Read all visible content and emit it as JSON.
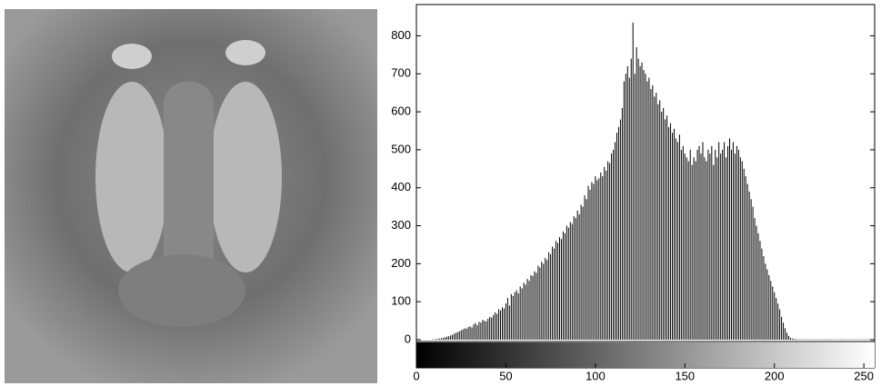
{
  "chart_data": {
    "type": "histogram",
    "color": "#000000",
    "xlim": [
      0,
      255
    ],
    "ylim": [
      0,
      880
    ],
    "xticks": [
      0,
      50,
      100,
      150,
      200,
      250
    ],
    "yticks": [
      0,
      100,
      200,
      300,
      400,
      500,
      600,
      700,
      800
    ],
    "values": [
      0,
      0,
      0,
      0,
      0,
      0,
      0,
      0,
      0,
      1,
      1,
      2,
      2,
      3,
      4,
      5,
      6,
      8,
      9,
      11,
      13,
      15,
      18,
      20,
      22,
      25,
      27,
      30,
      29,
      33,
      35,
      32,
      40,
      44,
      38,
      47,
      45,
      52,
      50,
      48,
      55,
      60,
      58,
      65,
      72,
      68,
      80,
      77,
      85,
      82,
      95,
      110,
      90,
      120,
      115,
      125,
      130,
      122,
      140,
      135,
      150,
      145,
      160,
      155,
      170,
      168,
      180,
      176,
      195,
      190,
      205,
      200,
      215,
      210,
      230,
      225,
      245,
      240,
      260,
      255,
      270,
      265,
      285,
      280,
      300,
      295,
      310,
      305,
      325,
      320,
      340,
      330,
      355,
      350,
      380,
      370,
      405,
      395,
      415,
      410,
      430,
      420,
      425,
      440,
      430,
      455,
      445,
      470,
      465,
      490,
      500,
      520,
      545,
      560,
      580,
      610,
      680,
      700,
      720,
      690,
      740,
      835,
      700,
      770,
      740,
      720,
      730,
      710,
      700,
      680,
      690,
      660,
      670,
      640,
      650,
      620,
      630,
      600,
      610,
      580,
      590,
      560,
      570,
      545,
      555,
      530,
      520,
      540,
      500,
      510,
      490,
      480,
      470,
      500,
      460,
      480,
      470,
      500,
      510,
      490,
      520,
      480,
      470,
      500,
      490,
      510,
      460,
      500,
      480,
      520,
      490,
      500,
      520,
      480,
      510,
      530,
      500,
      520,
      490,
      510,
      500,
      480,
      470,
      450,
      430,
      410,
      390,
      370,
      350,
      320,
      300,
      280,
      260,
      240,
      220,
      200,
      185,
      170,
      155,
      140,
      125,
      110,
      95,
      80,
      60,
      45,
      30,
      18,
      10,
      5,
      3,
      2,
      2,
      1,
      1,
      1,
      1,
      1,
      1,
      1,
      1,
      1,
      1,
      1,
      1,
      1,
      1,
      1,
      1,
      1,
      1,
      1,
      1,
      1,
      1,
      1,
      1,
      1,
      1,
      1,
      1,
      1,
      1,
      1,
      1,
      1,
      1,
      1,
      1,
      1,
      1,
      1,
      1,
      1,
      1,
      1
    ]
  }
}
